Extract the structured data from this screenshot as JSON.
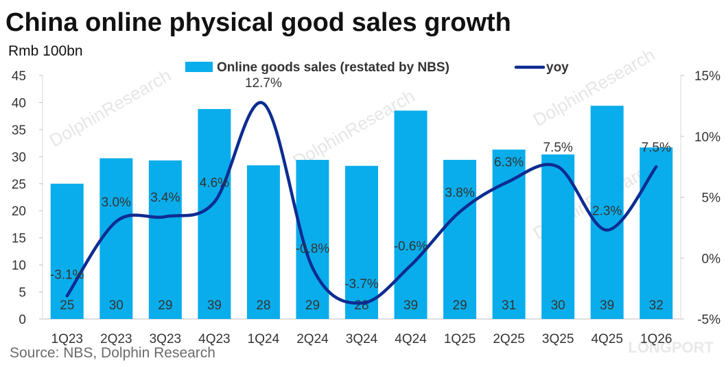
{
  "title": "China online physical good sales growth",
  "unit_label": "Rmb 100bn",
  "source": "Source: NBS, Dolphin Research",
  "chart_data": {
    "type": "bar+line",
    "categories": [
      "1Q23",
      "2Q23",
      "3Q23",
      "4Q23",
      "1Q24",
      "2Q24",
      "3Q24",
      "4Q24",
      "1Q25",
      "2Q25",
      "3Q25",
      "4Q25",
      "1Q26"
    ],
    "series": [
      {
        "name": "Online goods sales (restated by NBS)",
        "type": "bar",
        "axis": "left",
        "color": "#0AADEB",
        "values": [
          25,
          29.7,
          29.3,
          38.8,
          28.4,
          29.4,
          28.3,
          38.5,
          29.4,
          31.3,
          30.4,
          39.4,
          31.7
        ],
        "labels": [
          "25",
          "30",
          "29",
          "39",
          "28",
          "29",
          "28",
          "39",
          "29",
          "31",
          "30",
          "39",
          "32"
        ]
      },
      {
        "name": "yoy",
        "type": "line",
        "axis": "right",
        "color": "#0D2C91",
        "values": [
          -3.1,
          3.0,
          3.4,
          4.6,
          12.7,
          -0.8,
          -3.7,
          -0.6,
          3.8,
          6.3,
          7.5,
          2.3,
          7.5
        ],
        "labels": [
          "-3.1%",
          "3.0%",
          "3.4%",
          "4.6%",
          "12.7%",
          "-0.8%",
          "-3.7%",
          "-0.6%",
          "3.8%",
          "6.3%",
          "7.5%",
          "2.3%",
          "7.5%"
        ]
      }
    ],
    "left_axis": {
      "ylim": [
        0,
        45
      ],
      "ticks": [
        "0",
        "5",
        "10",
        "15",
        "20",
        "25",
        "30",
        "35",
        "40",
        "45"
      ]
    },
    "right_axis": {
      "ylim": [
        -5,
        15
      ],
      "ticks": [
        "-5%",
        "0%",
        "5%",
        "10%",
        "15%"
      ]
    },
    "legend_position": "top",
    "grid": false
  },
  "watermarks": [
    "DolphinResearch",
    "DolphinResearch",
    "DolphinResearch",
    "DolphinResearch",
    "LONGPORT"
  ]
}
